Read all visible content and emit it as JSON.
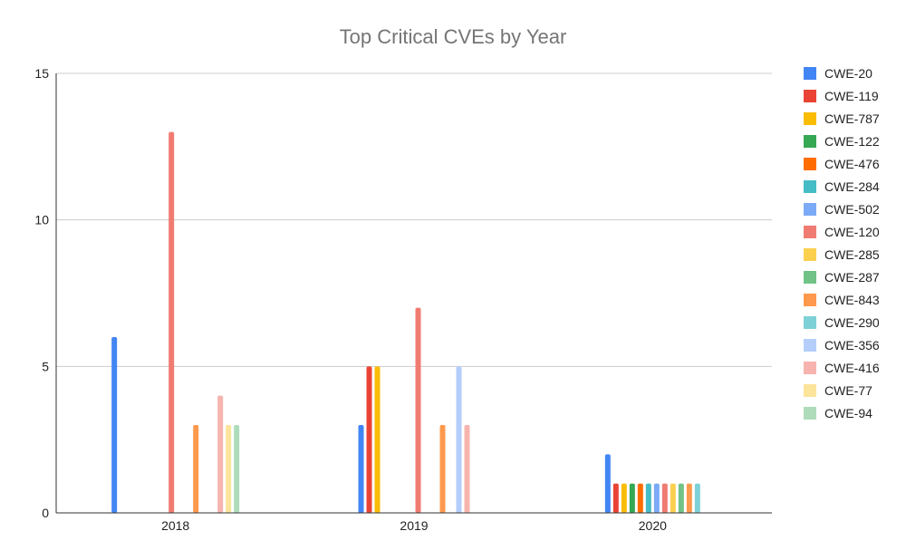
{
  "chart_data": {
    "type": "bar",
    "title": "Top Critical CVEs by Year",
    "xlabel": "",
    "ylabel": "",
    "categories": [
      "2018",
      "2019",
      "2020"
    ],
    "ylim": [
      0,
      15
    ],
    "yticks": [
      0,
      5,
      10,
      15
    ],
    "grid": true,
    "legend_position": "right",
    "series": [
      {
        "name": "CWE-20",
        "color": "#4285f4",
        "values": [
          6,
          3,
          2
        ]
      },
      {
        "name": "CWE-119",
        "color": "#ea4335",
        "values": [
          0,
          5,
          1
        ]
      },
      {
        "name": "CWE-787",
        "color": "#fbbc04",
        "values": [
          0,
          5,
          1
        ]
      },
      {
        "name": "CWE-122",
        "color": "#34a853",
        "values": [
          0,
          0,
          1
        ]
      },
      {
        "name": "CWE-476",
        "color": "#ff6d01",
        "values": [
          0,
          0,
          1
        ]
      },
      {
        "name": "CWE-284",
        "color": "#46bdc6",
        "values": [
          0,
          0,
          1
        ]
      },
      {
        "name": "CWE-502",
        "color": "#7baaf7",
        "values": [
          0,
          0,
          1
        ]
      },
      {
        "name": "CWE-120",
        "color": "#f07b72",
        "values": [
          13,
          7,
          1
        ]
      },
      {
        "name": "CWE-285",
        "color": "#fcd04f",
        "values": [
          0,
          0,
          1
        ]
      },
      {
        "name": "CWE-287",
        "color": "#71c287",
        "values": [
          0,
          0,
          1
        ]
      },
      {
        "name": "CWE-843",
        "color": "#ff994d",
        "values": [
          3,
          3,
          1
        ]
      },
      {
        "name": "CWE-290",
        "color": "#7ed1d7",
        "values": [
          0,
          0,
          1
        ]
      },
      {
        "name": "CWE-356",
        "color": "#b3cefb",
        "values": [
          0,
          5,
          0
        ]
      },
      {
        "name": "CWE-416",
        "color": "#f7b4ae",
        "values": [
          4,
          3,
          0
        ]
      },
      {
        "name": "CWE-77",
        "color": "#fde49b",
        "values": [
          3,
          0,
          0
        ]
      },
      {
        "name": "CWE-94",
        "color": "#aedcba",
        "values": [
          3,
          0,
          0
        ]
      }
    ]
  }
}
